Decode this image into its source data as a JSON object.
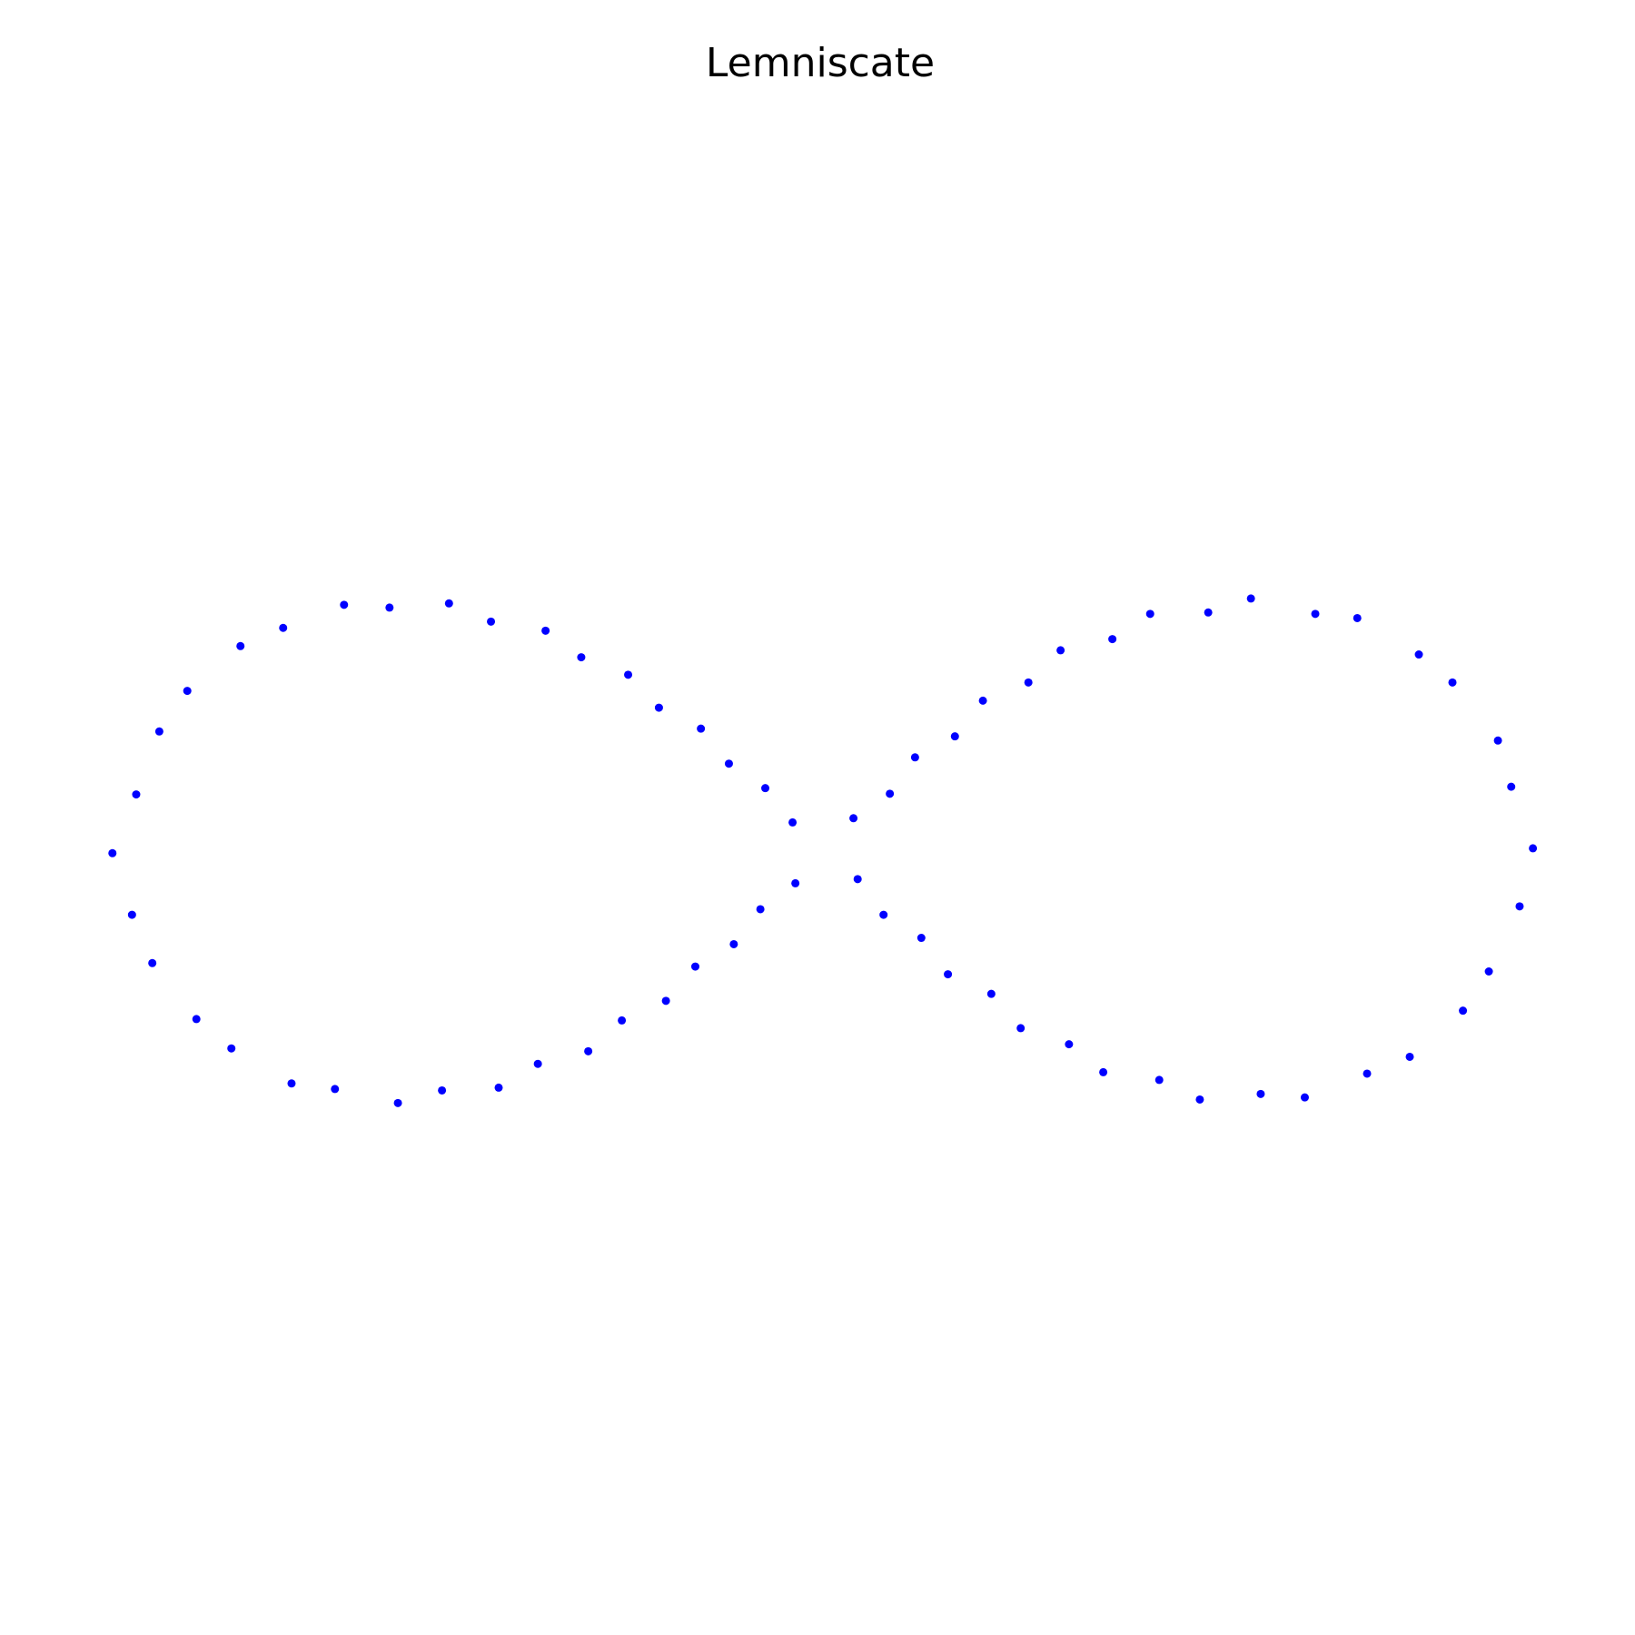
{
  "chart_data": {
    "type": "scatter",
    "title": "Lemniscate",
    "color": "#0000ff",
    "x": [
      1.012,
      0.981,
      0.962,
      0.897,
      0.849,
      0.761,
      0.701,
      0.609,
      0.548,
      0.465,
      0.411,
      0.337,
      0.291,
      0.226,
      0.186,
      0.129,
      0.093,
      0.041,
      0.993,
      0.949,
      0.912,
      0.836,
      0.775,
      0.686,
      0.623,
      0.536,
      0.478,
      0.398,
      0.349,
      0.28,
      0.238,
      0.176,
      0.138,
      0.084,
      0.047,
      -1.018,
      -0.984,
      -0.951,
      -0.911,
      -0.835,
      -0.774,
      -0.687,
      -0.622,
      -0.537,
      -0.477,
      -0.399,
      -0.348,
      -0.281,
      -0.237,
      -0.177,
      -0.137,
      -0.085,
      -0.046,
      -0.99,
      -0.961,
      -0.898,
      -0.848,
      -0.762,
      -0.7,
      -0.61,
      -0.547,
      -0.466,
      -0.41,
      -0.338,
      -0.29,
      -0.227,
      -0.185,
      -0.13,
      -0.092,
      -0.042
    ],
    "values": [
      0.004,
      0.092,
      0.158,
      0.241,
      0.281,
      0.333,
      0.339,
      0.361,
      0.341,
      0.339,
      0.303,
      0.287,
      0.241,
      0.215,
      0.164,
      0.134,
      0.082,
      0.047,
      -0.079,
      -0.172,
      -0.228,
      -0.294,
      -0.318,
      -0.352,
      -0.347,
      -0.355,
      -0.327,
      -0.316,
      -0.276,
      -0.253,
      -0.204,
      -0.176,
      -0.124,
      -0.091,
      -0.04,
      -0.003,
      0.081,
      0.171,
      0.229,
      0.293,
      0.319,
      0.352,
      0.348,
      0.354,
      0.328,
      0.315,
      0.277,
      0.252,
      0.205,
      0.175,
      0.125,
      0.09,
      0.041,
      -0.091,
      -0.16,
      -0.24,
      -0.282,
      -0.332,
      -0.34,
      -0.36,
      -0.342,
      -0.338,
      -0.304,
      -0.286,
      -0.242,
      -0.214,
      -0.165,
      -0.133,
      -0.083,
      -0.046
    ],
    "xlim": [
      -1.08,
      1.08
    ],
    "ylim": [
      -1.08,
      1.08
    ],
    "axis": false
  }
}
